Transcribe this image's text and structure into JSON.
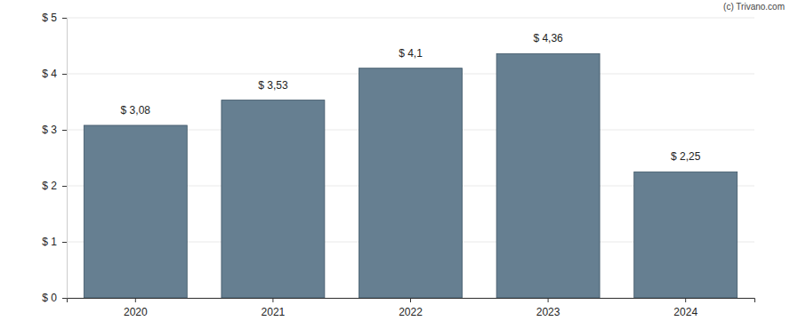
{
  "chart_data": {
    "type": "bar",
    "annotations": [
      "(c) Trivano.com"
    ],
    "categories": [
      "2020",
      "2021",
      "2022",
      "2023",
      "2024"
    ],
    "values": [
      3.08,
      3.53,
      4.1,
      4.36,
      2.25
    ],
    "value_labels": [
      "$ 3,08",
      "$ 3,53",
      "$ 4,1",
      "$ 4,36",
      "$ 2,25"
    ],
    "data_labels": true,
    "color": "#667f91",
    "ylim": [
      0,
      5
    ],
    "yticks": [
      {
        "value": 0,
        "label": "$ 0"
      },
      {
        "value": 1,
        "label": "$ 1"
      },
      {
        "value": 2,
        "label": "$ 2"
      },
      {
        "value": 3,
        "label": "$ 3"
      },
      {
        "value": 4,
        "label": "$ 4"
      },
      {
        "value": 5,
        "label": "$ 5"
      }
    ],
    "grid": true
  }
}
